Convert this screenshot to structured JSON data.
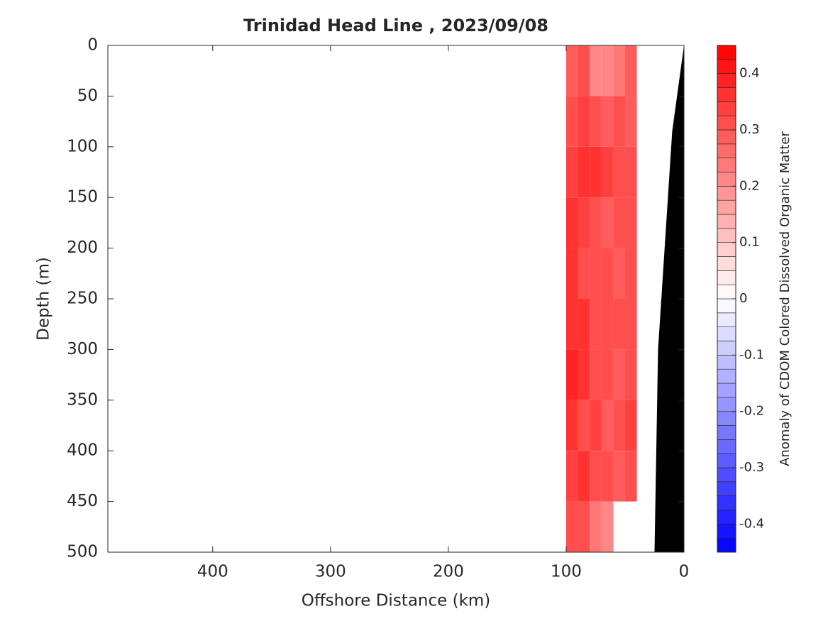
{
  "chart_data": {
    "type": "contour",
    "title": "Trinidad Head Line , 2023/09/08",
    "x_label": "Offshore Distance (km)",
    "y_label": "Depth (m)",
    "colorbar_label": "Anomaly of CDOM Colored Dissolved Organic Matter",
    "x_edges": [
      100,
      90,
      80,
      70,
      60,
      50,
      40
    ],
    "y_edges": [
      0,
      50,
      100,
      150,
      200,
      250,
      300,
      350,
      400,
      450,
      500
    ],
    "values": [
      [
        0.28,
        0.3,
        0.22,
        0.2,
        0.25,
        0.28
      ],
      [
        0.3,
        0.33,
        0.3,
        0.28,
        0.3,
        0.28
      ],
      [
        0.33,
        0.35,
        0.35,
        0.33,
        0.3,
        0.3
      ],
      [
        0.35,
        0.33,
        0.3,
        0.28,
        0.3,
        0.3
      ],
      [
        0.35,
        0.3,
        0.3,
        0.3,
        0.28,
        0.3
      ],
      [
        0.35,
        0.35,
        0.3,
        0.3,
        0.3,
        0.3
      ],
      [
        0.38,
        0.35,
        0.3,
        0.3,
        0.28,
        0.3
      ],
      [
        0.35,
        0.3,
        0.33,
        0.28,
        0.3,
        0.33
      ],
      [
        0.33,
        0.35,
        0.3,
        0.3,
        0.28,
        0.3
      ],
      [
        0.3,
        0.3,
        0.25,
        0.22,
        null,
        null
      ]
    ],
    "bottom": {
      "x": [
        0,
        10,
        22,
        25
      ],
      "depth": [
        0,
        85,
        300,
        500
      ],
      "color": "#000000"
    },
    "xlim": [
      489,
      0
    ],
    "ylim": [
      0,
      500
    ],
    "xticks": [
      400,
      300,
      200,
      100,
      0
    ],
    "yticks": [
      0,
      50,
      100,
      150,
      200,
      250,
      300,
      350,
      400,
      450,
      500
    ],
    "clim": [
      -0.45,
      0.45
    ],
    "level_step": 0.025,
    "cticks": [
      -0.4,
      -0.3,
      -0.2,
      -0.1,
      0,
      0.1,
      0.2,
      0.3,
      0.4
    ],
    "colormap": [
      "#0000ff",
      "#ffffff",
      "#ff0000"
    ]
  }
}
